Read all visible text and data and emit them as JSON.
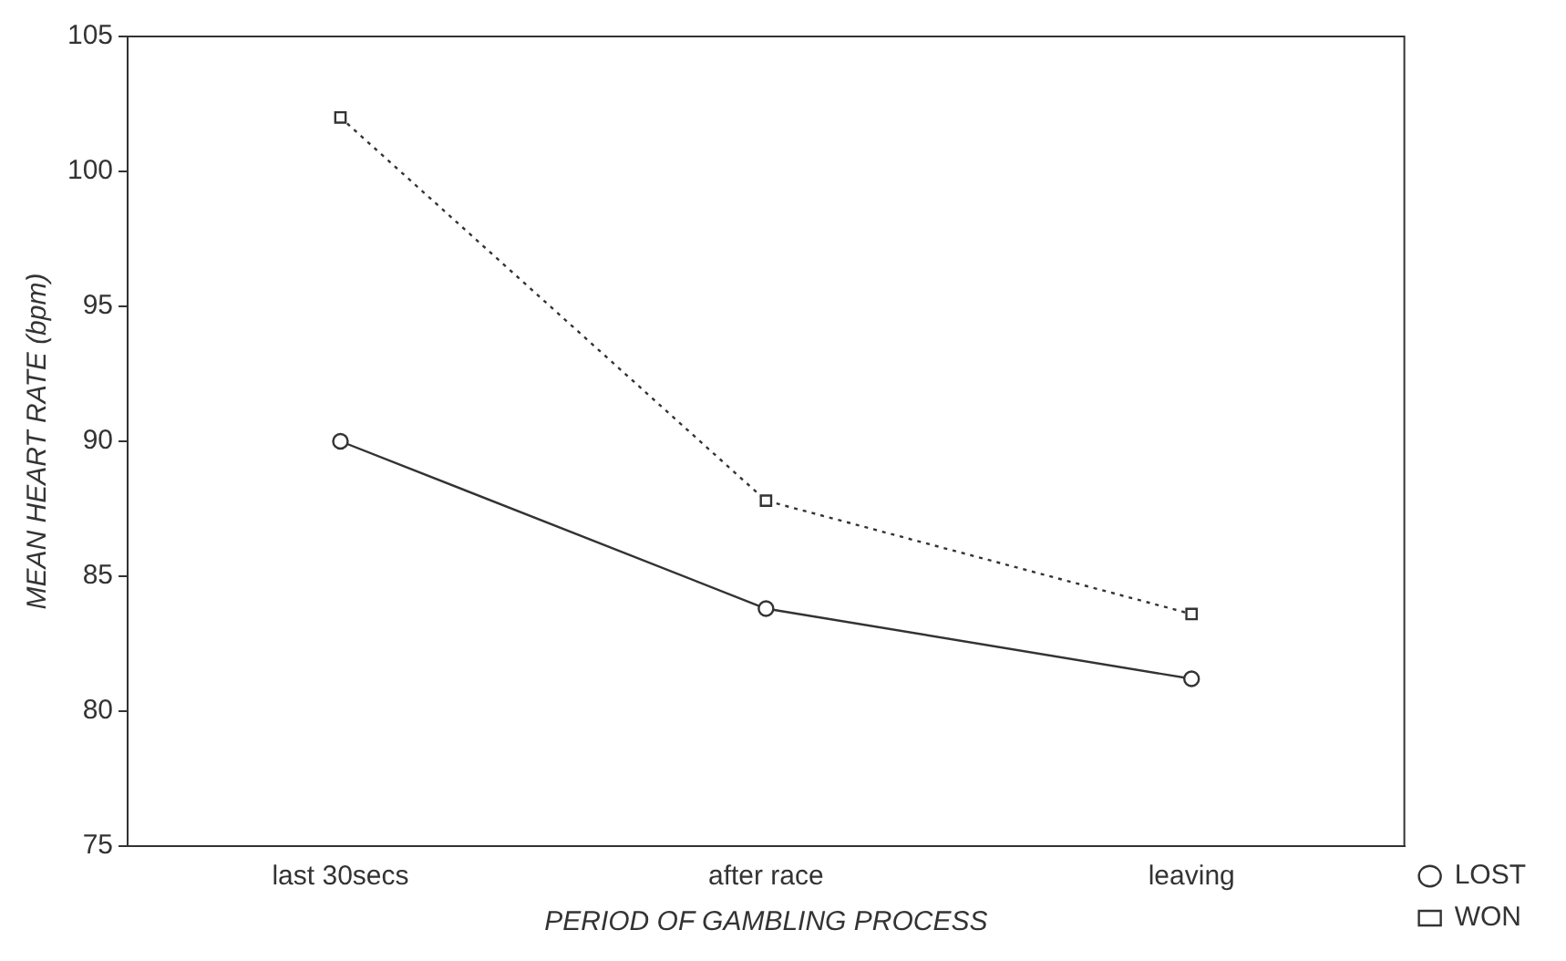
{
  "chart_data": {
    "type": "line",
    "xlabel": "PERIOD OF GAMBLING PROCESS",
    "ylabel": "MEAN HEART RATE (bpm)",
    "categories": [
      "last 30secs",
      "after race",
      "leaving"
    ],
    "ylim": [
      75,
      105
    ],
    "yticks": [
      75,
      80,
      85,
      90,
      95,
      100,
      105
    ],
    "grid": false,
    "legend": "bottom right",
    "series": [
      {
        "name": "LOST",
        "color": "#333333",
        "values": [
          90,
          83.8,
          81.2
        ],
        "marker": "circle",
        "line_style": "solid"
      },
      {
        "name": "WON",
        "color": "#333333",
        "values": [
          102,
          87.8,
          83.6
        ],
        "marker": "square",
        "line_style": "dotted"
      }
    ]
  }
}
